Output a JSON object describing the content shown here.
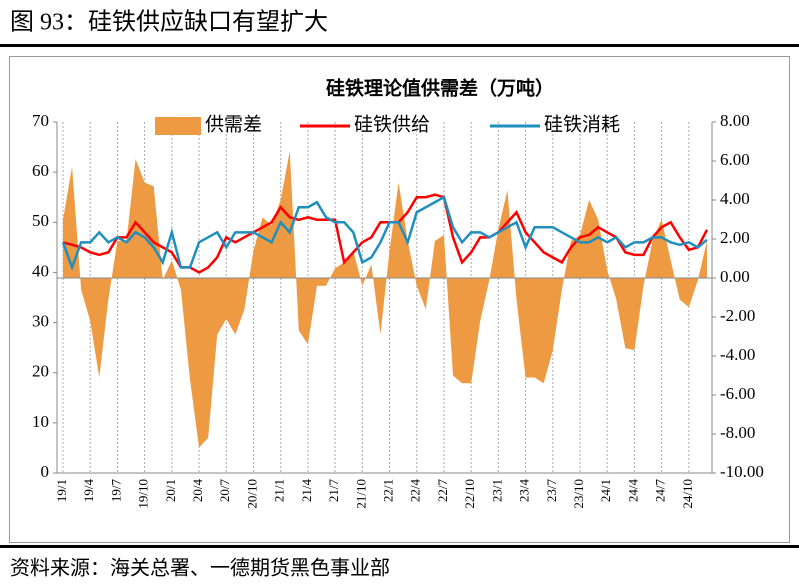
{
  "header": {
    "title": "图 93：硅铁供应缺口有望扩大"
  },
  "footer": {
    "source": "资料来源：海关总署、一德期货黑色事业部"
  },
  "chart_data": {
    "type": "combo",
    "title": "硅铁理论值供需差（万吨）",
    "categories": [
      "19/1",
      null,
      null,
      "19/4",
      null,
      null,
      "19/7",
      null,
      null,
      "19/10",
      null,
      null,
      "20/1",
      null,
      null,
      "20/4",
      null,
      null,
      "20/7",
      null,
      null,
      "20/10",
      null,
      null,
      "21/1",
      null,
      null,
      "21/4",
      null,
      null,
      "21/7",
      null,
      null,
      "21/10",
      null,
      null,
      "22/1",
      null,
      null,
      "22/4",
      null,
      null,
      "22/7",
      null,
      null,
      "22/10",
      null,
      null,
      "23/1",
      null,
      null,
      "23/4",
      null,
      null,
      "23/7",
      null,
      null,
      "23/10",
      null,
      null,
      "24/1",
      null,
      null,
      "24/4",
      null,
      null,
      "24/7",
      null,
      null,
      "24/10",
      null,
      null
    ],
    "series": [
      {
        "name": "供需差",
        "kind": "area",
        "axis": "y2",
        "color": "#ee9a42",
        "values": [
          3.0,
          5.7,
          -0.6,
          -2.2,
          -5.1,
          -1.1,
          1.9,
          1.9,
          6.1,
          4.9,
          4.7,
          -0.1,
          0.9,
          -0.6,
          -5.2,
          -8.7,
          -8.2,
          -2.9,
          -2.1,
          -2.9,
          -1.6,
          1.4,
          3.1,
          2.7,
          4.0,
          6.5,
          -2.7,
          -3.4,
          -0.4,
          -0.4,
          0.5,
          0.8,
          1.4,
          -0.4,
          0.7,
          -2.9,
          1.4,
          4.9,
          1.9,
          -0.4,
          -1.6,
          1.9,
          2.2,
          -5.0,
          -5.4,
          -5.4,
          -2.2,
          -0.1,
          2.5,
          4.5,
          -1.1,
          -5.1,
          -5.1,
          -5.4,
          -3.7,
          -0.6,
          1.9,
          2.2,
          4.0,
          3.0,
          0.4,
          -1.1,
          -3.6,
          -3.7,
          -0.4,
          1.9,
          3.0,
          0.9,
          -1.1,
          -1.5,
          -0.1,
          1.9
        ]
      },
      {
        "name": "硅铁供给",
        "kind": "line",
        "color": "#ff0000",
        "values": [
          46,
          45.5,
          45,
          44,
          43.5,
          44,
          47,
          47,
          50,
          48,
          46,
          45,
          44,
          41,
          41,
          40,
          41,
          43,
          47,
          46,
          47,
          48,
          49,
          50,
          53,
          51,
          50.5,
          51,
          50.5,
          50.5,
          50.5,
          42,
          44,
          46,
          47,
          50,
          50,
          50,
          52,
          55,
          55,
          55.5,
          55,
          47,
          42,
          44,
          47,
          47,
          48,
          50,
          52,
          48,
          46,
          44,
          43,
          42,
          45,
          47,
          47.5,
          49,
          48,
          47,
          44,
          43.5,
          43.5,
          47,
          49,
          50,
          47,
          44.5,
          45,
          48.5
        ]
      },
      {
        "name": "硅铁消耗",
        "kind": "line",
        "color": "#1f8fbf",
        "values": [
          46,
          41,
          46,
          46,
          48,
          46,
          47,
          46,
          48,
          47,
          45,
          42,
          48,
          41,
          41,
          46,
          47,
          48,
          45,
          48,
          48,
          48,
          47,
          46,
          50,
          48,
          53,
          53,
          54,
          51,
          50,
          50,
          48,
          42,
          43,
          46,
          50,
          50,
          46,
          52,
          53,
          54,
          55,
          49,
          46,
          48,
          48,
          47,
          48,
          49,
          50,
          45,
          49,
          49,
          49,
          48,
          47,
          46,
          46,
          47,
          46,
          47,
          45,
          46,
          46,
          47,
          47,
          46,
          45.5,
          46,
          45,
          46.5
        ]
      }
    ],
    "ylim": [
      0,
      70
    ],
    "yticks": [
      0,
      10,
      20,
      30,
      40,
      50,
      60,
      70
    ],
    "y2lim": [
      -10,
      8
    ],
    "y2ticks": [
      {
        "value": -10,
        "label": "-10.00"
      },
      {
        "value": -8,
        "label": "-8.00"
      },
      {
        "value": -6,
        "label": "-6.00"
      },
      {
        "value": -4,
        "label": "-4.00"
      },
      {
        "value": -2,
        "label": "-2.00"
      },
      {
        "value": 0,
        "label": "0.00"
      },
      {
        "value": 2,
        "label": "2.00"
      },
      {
        "value": 4,
        "label": "4.00"
      },
      {
        "value": 6,
        "label": "6.00"
      },
      {
        "value": 8,
        "label": "8.00"
      }
    ]
  }
}
